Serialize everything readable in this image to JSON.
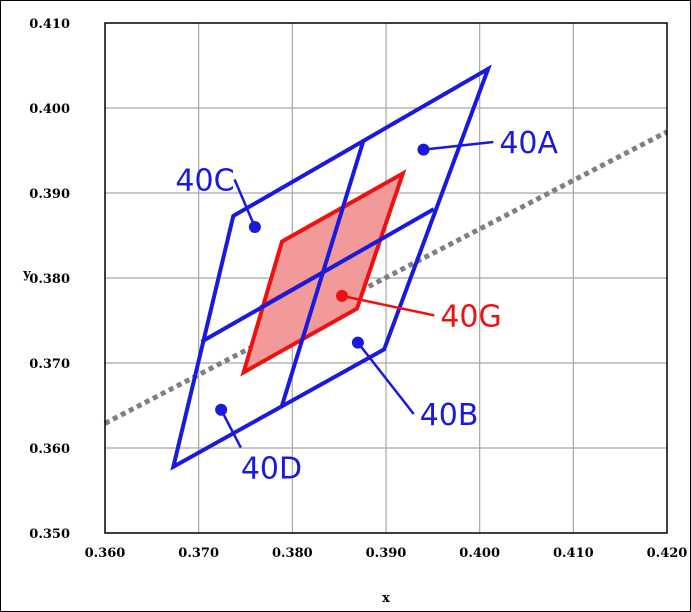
{
  "chart_data": {
    "type": "scatter",
    "title": "",
    "xlabel": "x",
    "ylabel": "y",
    "xlim": [
      0.36,
      0.42
    ],
    "ylim": [
      0.35,
      0.41
    ],
    "grid": true,
    "x_ticks": [
      0.36,
      0.37,
      0.38,
      0.39,
      0.4,
      0.41,
      0.42
    ],
    "y_ticks": [
      0.35,
      0.36,
      0.37,
      0.38,
      0.39,
      0.4,
      0.41
    ],
    "x_tick_labels": [
      "0.360",
      "0.370",
      "0.380",
      "0.390",
      "0.400",
      "0.410",
      "0.420"
    ],
    "y_tick_labels": [
      "0.350",
      "0.360",
      "0.370",
      "0.380",
      "0.390",
      "0.400",
      "0.410"
    ],
    "colors": {
      "blue": "#1a1adc",
      "red": "#ee1111",
      "red_fill": "#f29a9a",
      "dotted": "#7f7f7f",
      "grid": "#a6a6a6"
    },
    "dotted_line": {
      "points": [
        [
          0.36,
          0.3629
        ],
        [
          0.42,
          0.3972
        ]
      ]
    },
    "regions": [
      {
        "outline": [
          [
            0.3673,
            0.3578
          ],
          [
            0.3898,
            0.3716
          ],
          [
            0.4009,
            0.4046
          ],
          [
            0.3737,
            0.3873
          ]
        ],
        "dividers": [
          [
            [
              0.3703,
              0.3725
            ],
            [
              0.3951,
              0.3881
            ]
          ],
          [
            [
              0.3789,
              0.365
            ],
            [
              0.3876,
              0.3962
            ]
          ]
        ]
      }
    ],
    "region_red": {
      "outline": [
        [
          0.3748,
          0.3689
        ],
        [
          0.3869,
          0.3764
        ],
        [
          0.3918,
          0.3923
        ],
        [
          0.3789,
          0.3843
        ]
      ],
      "dividers": [
        [
          [
            0.3766,
            0.3766
          ],
          [
            0.3893,
            0.3845
          ]
        ],
        [
          [
            0.3806,
            0.3712
          ],
          [
            0.3855,
            0.3885
          ]
        ]
      ]
    },
    "points": [
      {
        "label": "40A",
        "x": 0.394,
        "y": 0.3951,
        "label_x": 0.4021,
        "label_y": 0.396,
        "color": "blue"
      },
      {
        "label": "40B",
        "x": 0.387,
        "y": 0.3724,
        "label_x": 0.3936,
        "label_y": 0.364,
        "color": "blue"
      },
      {
        "label": "40C",
        "x": 0.376,
        "y": 0.386,
        "label_x": 0.3702,
        "label_y": 0.3916,
        "color": "blue"
      },
      {
        "label": "40D",
        "x": 0.3724,
        "y": 0.3645,
        "label_x": 0.3745,
        "label_y": 0.3577,
        "color": "blue"
      },
      {
        "label": "40G",
        "x": 0.3853,
        "y": 0.3779,
        "label_x": 0.3958,
        "label_y": 0.3756,
        "color": "red"
      }
    ]
  }
}
